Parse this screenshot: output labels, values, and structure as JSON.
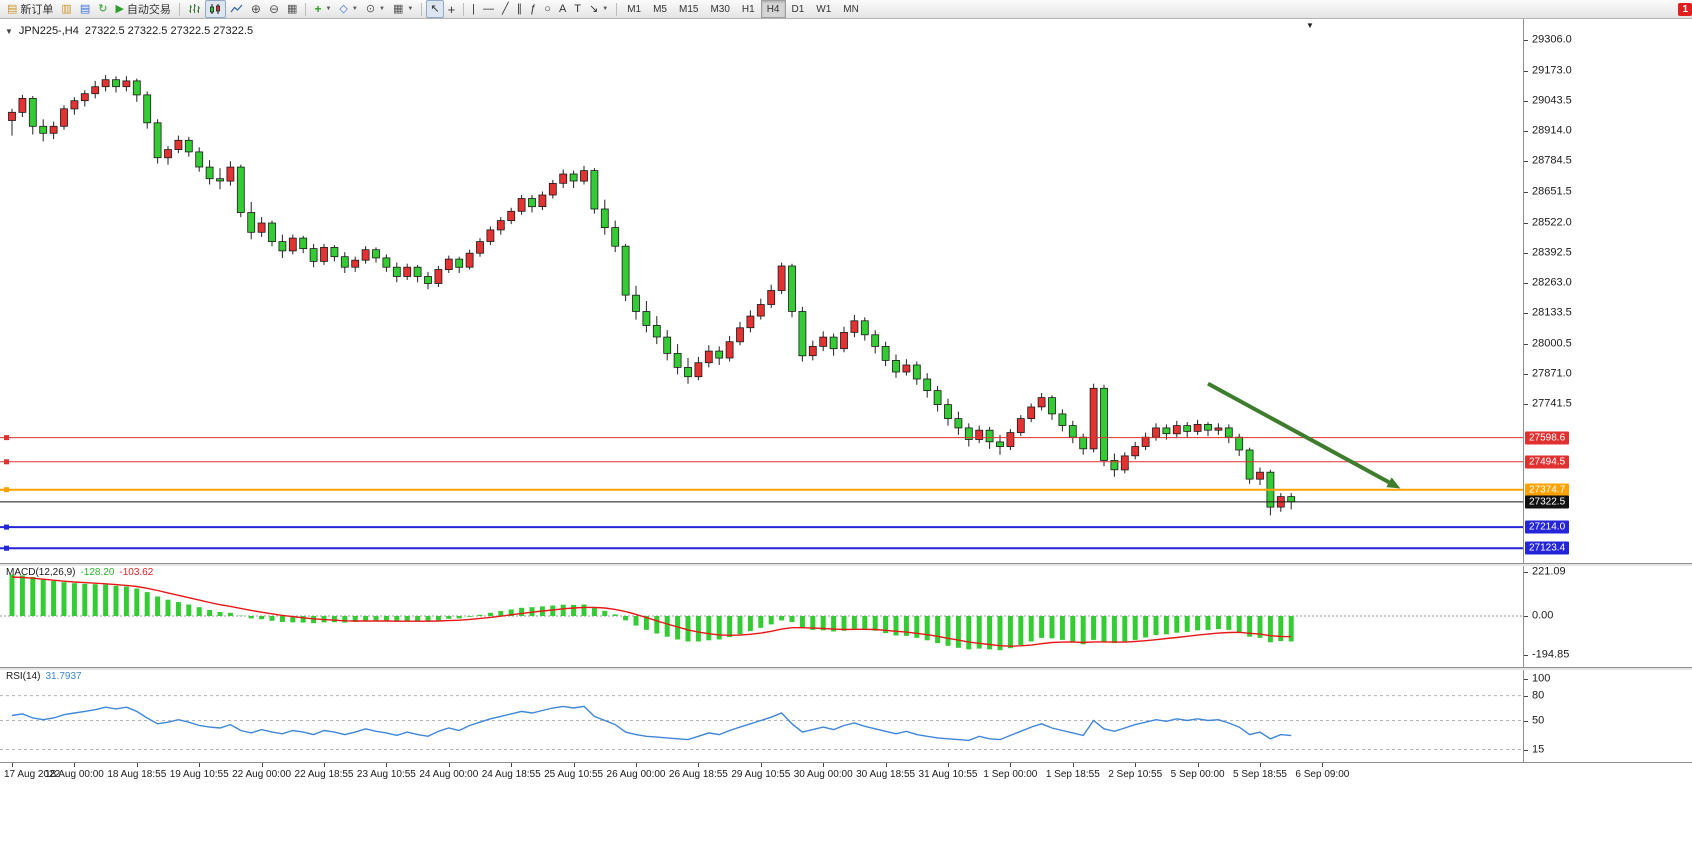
{
  "toolbar": {
    "new_order_label": "新订单",
    "auto_trading_label": "自动交易",
    "timeframes": [
      "M1",
      "M5",
      "M15",
      "M30",
      "H1",
      "H4",
      "D1",
      "W1",
      "MN"
    ],
    "active_timeframe": "H4",
    "notification_count": "1"
  },
  "chart_header": {
    "symbol_period": "JPN225-,H4",
    "ohlc": "27322.5 27322.5 27322.5 27322.5"
  },
  "chart_data": {
    "type": "candlestick",
    "symbol": "JPN225-",
    "timeframe": "H4",
    "colors": {
      "up": "#e23232",
      "down": "#35cb35",
      "wick": "#222222",
      "macd_hist": "#35cb35",
      "macd_signal": "#e81717",
      "rsi_line": "#3f87d9"
    },
    "price_axis_labels": [
      "29306.0",
      "29173.0",
      "29043.5",
      "28914.0",
      "28784.5",
      "28651.5",
      "28522.0",
      "28392.5",
      "28263.0",
      "28133.5",
      "28000.5",
      "27871.0",
      "27741.5"
    ],
    "hlines": [
      {
        "price": 27598.6,
        "label": "27598.6",
        "color": "#e03030",
        "width": 1,
        "handle": true,
        "badge_bg": "#e03030"
      },
      {
        "price": 27494.5,
        "label": "27494.5",
        "color": "#e03030",
        "width": 1,
        "handle": true,
        "badge_bg": "#e03030"
      },
      {
        "price": 27374.7,
        "label": "27374.7",
        "color": "#ffa200",
        "width": 2,
        "handle": true,
        "badge_bg": "#ffa200"
      },
      {
        "price": 27322.5,
        "label": "27322.5",
        "color": "#151515",
        "width": 1,
        "handle": false,
        "badge_bg": "#111111"
      },
      {
        "price": 27214.0,
        "label": "27214.0",
        "color": "#2424d8",
        "width": 2,
        "handle": true,
        "badge_bg": "#2424d8"
      },
      {
        "price": 27123.4,
        "label": "27123.4",
        "color": "#2424d8",
        "width": 2,
        "handle": true,
        "badge_bg": "#2424d8"
      }
    ],
    "time_labels": [
      "17 Aug 2022",
      "18 Aug 00:00",
      "18 Aug 18:55",
      "19 Aug 10:55",
      "22 Aug 00:00",
      "22 Aug 18:55",
      "23 Aug 10:55",
      "24 Aug 00:00",
      "24 Aug 18:55",
      "25 Aug 10:55",
      "26 Aug 00:00",
      "26 Aug 18:55",
      "29 Aug 10:55",
      "30 Aug 00:00",
      "30 Aug 18:55",
      "31 Aug 10:55",
      "1 Sep 00:00",
      "1 Sep 18:55",
      "2 Sep 10:55",
      "5 Sep 00:00",
      "5 Sep 18:55",
      "6 Sep 09:00"
    ],
    "candles": [
      [
        28960,
        29010,
        28895,
        28995
      ],
      [
        28995,
        29070,
        28975,
        29055
      ],
      [
        29055,
        29065,
        28900,
        28935
      ],
      [
        28935,
        28965,
        28870,
        28905
      ],
      [
        28905,
        28955,
        28880,
        28935
      ],
      [
        28935,
        29025,
        28920,
        29010
      ],
      [
        29010,
        29060,
        28985,
        29045
      ],
      [
        29045,
        29090,
        29020,
        29075
      ],
      [
        29075,
        29130,
        29055,
        29105
      ],
      [
        29105,
        29155,
        29085,
        29135
      ],
      [
        29135,
        29150,
        29080,
        29105
      ],
      [
        29105,
        29150,
        29085,
        29130
      ],
      [
        29130,
        29140,
        29040,
        29070
      ],
      [
        29070,
        29085,
        28925,
        28950
      ],
      [
        28950,
        28965,
        28775,
        28800
      ],
      [
        28800,
        28850,
        28770,
        28835
      ],
      [
        28835,
        28895,
        28820,
        28875
      ],
      [
        28875,
        28890,
        28805,
        28825
      ],
      [
        28825,
        28845,
        28740,
        28760
      ],
      [
        28760,
        28790,
        28685,
        28710
      ],
      [
        28710,
        28755,
        28665,
        28700
      ],
      [
        28700,
        28785,
        28680,
        28760
      ],
      [
        28760,
        28770,
        28545,
        28565
      ],
      [
        28565,
        28610,
        28450,
        28480
      ],
      [
        28480,
        28545,
        28460,
        28520
      ],
      [
        28520,
        28530,
        28420,
        28440
      ],
      [
        28440,
        28470,
        28370,
        28400
      ],
      [
        28400,
        28470,
        28385,
        28455
      ],
      [
        28455,
        28465,
        28390,
        28410
      ],
      [
        28410,
        28430,
        28330,
        28355
      ],
      [
        28355,
        28430,
        28340,
        28415
      ],
      [
        28415,
        28425,
        28355,
        28375
      ],
      [
        28375,
        28395,
        28305,
        28330
      ],
      [
        28330,
        28375,
        28310,
        28360
      ],
      [
        28360,
        28420,
        28345,
        28405
      ],
      [
        28405,
        28415,
        28350,
        28370
      ],
      [
        28370,
        28385,
        28310,
        28330
      ],
      [
        28330,
        28350,
        28265,
        28290
      ],
      [
        28290,
        28345,
        28275,
        28330
      ],
      [
        28330,
        28340,
        28265,
        28290
      ],
      [
        28290,
        28310,
        28235,
        28260
      ],
      [
        28260,
        28335,
        28245,
        28320
      ],
      [
        28320,
        28380,
        28305,
        28365
      ],
      [
        28365,
        28375,
        28305,
        28330
      ],
      [
        28330,
        28405,
        28320,
        28390
      ],
      [
        28390,
        28455,
        28375,
        28440
      ],
      [
        28440,
        28505,
        28425,
        28490
      ],
      [
        28490,
        28545,
        28470,
        28530
      ],
      [
        28530,
        28585,
        28515,
        28570
      ],
      [
        28570,
        28640,
        28555,
        28625
      ],
      [
        28625,
        28640,
        28565,
        28590
      ],
      [
        28590,
        28655,
        28575,
        28640
      ],
      [
        28640,
        28705,
        28625,
        28690
      ],
      [
        28690,
        28750,
        28670,
        28730
      ],
      [
        28730,
        28745,
        28670,
        28700
      ],
      [
        28700,
        28765,
        28685,
        28745
      ],
      [
        28745,
        28755,
        28560,
        28580
      ],
      [
        28580,
        28620,
        28470,
        28500
      ],
      [
        28500,
        28530,
        28395,
        28420
      ],
      [
        28420,
        28430,
        28185,
        28210
      ],
      [
        28210,
        28250,
        28105,
        28140
      ],
      [
        28140,
        28185,
        28050,
        28080
      ],
      [
        28080,
        28120,
        28000,
        28030
      ],
      [
        28030,
        28060,
        27930,
        27960
      ],
      [
        27960,
        28000,
        27870,
        27900
      ],
      [
        27900,
        27940,
        27830,
        27860
      ],
      [
        27860,
        27945,
        27845,
        27920
      ],
      [
        27920,
        27995,
        27900,
        27970
      ],
      [
        27970,
        27990,
        27910,
        27940
      ],
      [
        27940,
        28035,
        27925,
        28010
      ],
      [
        28010,
        28095,
        27995,
        28070
      ],
      [
        28070,
        28145,
        28050,
        28120
      ],
      [
        28120,
        28195,
        28105,
        28170
      ],
      [
        28170,
        28255,
        28155,
        28230
      ],
      [
        28230,
        28350,
        28215,
        28335
      ],
      [
        28335,
        28345,
        28115,
        28140
      ],
      [
        28140,
        28160,
        27925,
        27950
      ],
      [
        27950,
        28015,
        27930,
        27990
      ],
      [
        27990,
        28055,
        27970,
        28030
      ],
      [
        28030,
        28045,
        27950,
        27980
      ],
      [
        27980,
        28075,
        27965,
        28050
      ],
      [
        28050,
        28125,
        28030,
        28100
      ],
      [
        28100,
        28115,
        28015,
        28040
      ],
      [
        28040,
        28060,
        27960,
        27990
      ],
      [
        27990,
        28010,
        27905,
        27930
      ],
      [
        27930,
        27955,
        27855,
        27880
      ],
      [
        27880,
        27935,
        27865,
        27910
      ],
      [
        27910,
        27925,
        27825,
        27850
      ],
      [
        27850,
        27875,
        27770,
        27800
      ],
      [
        27800,
        27820,
        27710,
        27740
      ],
      [
        27740,
        27765,
        27650,
        27680
      ],
      [
        27680,
        27710,
        27610,
        27640
      ],
      [
        27640,
        27660,
        27560,
        27590
      ],
      [
        27590,
        27650,
        27575,
        27630
      ],
      [
        27630,
        27645,
        27550,
        27580
      ],
      [
        27580,
        27610,
        27525,
        27560
      ],
      [
        27560,
        27635,
        27545,
        27620
      ],
      [
        27620,
        27695,
        27605,
        27680
      ],
      [
        27680,
        27745,
        27665,
        27730
      ],
      [
        27730,
        27790,
        27715,
        27770
      ],
      [
        27770,
        27780,
        27675,
        27700
      ],
      [
        27700,
        27720,
        27625,
        27650
      ],
      [
        27650,
        27670,
        27575,
        27600
      ],
      [
        27600,
        27615,
        27525,
        27550
      ],
      [
        27550,
        27830,
        27535,
        27810
      ],
      [
        27810,
        27825,
        27475,
        27500
      ],
      [
        27500,
        27530,
        27430,
        27460
      ],
      [
        27460,
        27535,
        27445,
        27520
      ],
      [
        27520,
        27580,
        27505,
        27560
      ],
      [
        27560,
        27620,
        27545,
        27600
      ],
      [
        27600,
        27660,
        27585,
        27640
      ],
      [
        27640,
        27655,
        27590,
        27615
      ],
      [
        27615,
        27670,
        27600,
        27650
      ],
      [
        27650,
        27665,
        27600,
        27625
      ],
      [
        27625,
        27675,
        27610,
        27655
      ],
      [
        27655,
        27665,
        27605,
        27630
      ],
      [
        27630,
        27660,
        27610,
        27640
      ],
      [
        27640,
        27655,
        27575,
        27600
      ],
      [
        27600,
        27615,
        27520,
        27545
      ],
      [
        27545,
        27555,
        27400,
        27420
      ],
      [
        27420,
        27470,
        27395,
        27450
      ],
      [
        27450,
        27460,
        27265,
        27300
      ],
      [
        27300,
        27360,
        27280,
        27345
      ],
      [
        27345,
        27360,
        27290,
        27322.5
      ]
    ],
    "macd": {
      "label": "MACD(12,26,9)",
      "value_main": "-128.20",
      "value_signal": "-103.62",
      "scale_labels": [
        "221.09",
        "0.00",
        "-194.85"
      ],
      "hist": [
        208,
        204,
        196,
        185,
        176,
        170,
        165,
        162,
        160,
        158,
        152,
        148,
        138,
        120,
        98,
        82,
        70,
        58,
        44,
        30,
        20,
        16,
        2,
        -12,
        -16,
        -24,
        -30,
        -32,
        -33,
        -36,
        -32,
        -31,
        -33,
        -30,
        -24,
        -22,
        -24,
        -28,
        -25,
        -27,
        -28,
        -22,
        -14,
        -12,
        -4,
        6,
        16,
        25,
        33,
        41,
        44,
        48,
        53,
        57,
        56,
        58,
        42,
        26,
        8,
        -22,
        -48,
        -70,
        -88,
        -104,
        -118,
        -128,
        -128,
        -122,
        -118,
        -106,
        -92,
        -76,
        -60,
        -42,
        -22,
        -30,
        -60,
        -70,
        -72,
        -78,
        -74,
        -64,
        -66,
        -74,
        -86,
        -98,
        -100,
        -110,
        -122,
        -136,
        -150,
        -160,
        -168,
        -164,
        -168,
        -172,
        -162,
        -146,
        -128,
        -110,
        -112,
        -120,
        -130,
        -142,
        -120,
        -128,
        -136,
        -130,
        -120,
        -108,
        -96,
        -92,
        -84,
        -80,
        -72,
        -70,
        -66,
        -70,
        -82,
        -104,
        -110,
        -132,
        -126,
        -128.2
      ],
      "signal": [
        196,
        194,
        190,
        185,
        180,
        175,
        171,
        168,
        165,
        162,
        158,
        154,
        148,
        139,
        128,
        116,
        104,
        92,
        80,
        68,
        57,
        48,
        38,
        28,
        19,
        11,
        3,
        -3,
        -9,
        -14,
        -18,
        -21,
        -24,
        -25,
        -25,
        -25,
        -25,
        -26,
        -26,
        -26,
        -26,
        -25,
        -23,
        -21,
        -17,
        -12,
        -7,
        -1,
        6,
        13,
        19,
        25,
        30,
        36,
        40,
        43,
        43,
        40,
        33,
        22,
        8,
        -8,
        -24,
        -40,
        -55,
        -70,
        -81,
        -89,
        -95,
        -97,
        -96,
        -92,
        -86,
        -77,
        -66,
        -59,
        -59,
        -61,
        -63,
        -66,
        -68,
        -67,
        -67,
        -68,
        -72,
        -77,
        -81,
        -87,
        -94,
        -102,
        -112,
        -121,
        -131,
        -137,
        -143,
        -149,
        -152,
        -150,
        -146,
        -139,
        -133,
        -131,
        -130,
        -133,
        -130,
        -130,
        -131,
        -131,
        -128,
        -124,
        -119,
        -113,
        -108,
        -102,
        -96,
        -91,
        -86,
        -83,
        -82,
        -87,
        -91,
        -99,
        -103,
        -103.62
      ]
    },
    "rsi": {
      "label": "RSI(14)",
      "value": "31.7937",
      "scale_labels": [
        "100",
        "80",
        "50",
        "15"
      ],
      "levels": [
        80,
        50,
        15
      ],
      "series": [
        56,
        58,
        53,
        51,
        53,
        57,
        59,
        61,
        63,
        66,
        64,
        66,
        61,
        53,
        46,
        48,
        51,
        48,
        44,
        42,
        41,
        45,
        38,
        35,
        39,
        36,
        34,
        38,
        36,
        33,
        38,
        36,
        33,
        36,
        40,
        37,
        35,
        32,
        36,
        33,
        31,
        37,
        41,
        38,
        44,
        48,
        52,
        55,
        58,
        61,
        59,
        62,
        65,
        67,
        65,
        67,
        55,
        50,
        45,
        36,
        33,
        31,
        30,
        29,
        28,
        27,
        31,
        35,
        33,
        38,
        42,
        46,
        50,
        54,
        59,
        46,
        36,
        39,
        42,
        39,
        44,
        47,
        43,
        40,
        37,
        34,
        37,
        33,
        31,
        29,
        28,
        27,
        26,
        31,
        28,
        27,
        32,
        37,
        42,
        46,
        41,
        38,
        35,
        32,
        50,
        40,
        37,
        41,
        45,
        48,
        51,
        49,
        52,
        50,
        52,
        50,
        51,
        47,
        42,
        33,
        36,
        28,
        33,
        31.79
      ]
    },
    "arrow": {
      "from_index": 115,
      "from_price": 27830,
      "to_index": 133.5,
      "to_price": 27380,
      "color": "#3e7d2e"
    }
  }
}
